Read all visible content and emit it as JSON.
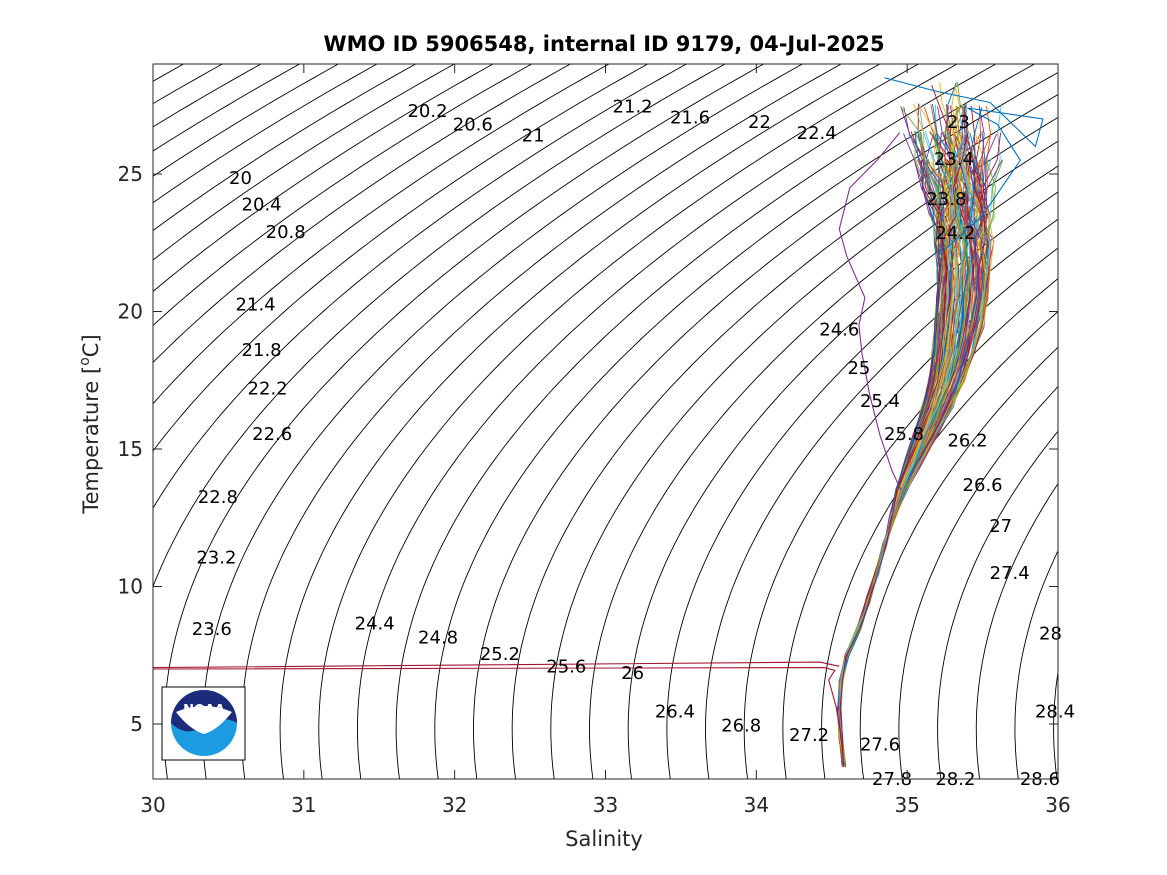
{
  "chart_data": {
    "type": "line",
    "title": "WMO ID 5906548, internal ID 9179, 04-Jul-2025",
    "xlabel": "Salinity",
    "ylabel_main": "Temperature [",
    "ylabel_sup": "o",
    "ylabel_end": "C]",
    "xlim": [
      30,
      36
    ],
    "ylim": [
      3,
      29
    ],
    "x_ticks": [
      30,
      31,
      32,
      33,
      34,
      35,
      36
    ],
    "x_tick_labels": [
      "30",
      "31",
      "32",
      "33",
      "34",
      "35",
      "36"
    ],
    "y_ticks": [
      5,
      10,
      15,
      20,
      25
    ],
    "y_tick_labels": [
      "5",
      "10",
      "15",
      "20",
      "25"
    ],
    "grid": false,
    "isopycnals": {
      "levels_from": 19.6,
      "levels_to": 29.0,
      "step": 0.2,
      "color": "#000000",
      "labels": [
        {
          "text": "20",
          "s": 30.58,
          "t": 24.85
        },
        {
          "text": "20.2",
          "s": 31.82,
          "t": 27.3
        },
        {
          "text": "20.4",
          "s": 30.72,
          "t": 23.9
        },
        {
          "text": "20.6",
          "s": 32.12,
          "t": 26.8
        },
        {
          "text": "20.8",
          "s": 30.88,
          "t": 22.9
        },
        {
          "text": "21",
          "s": 32.52,
          "t": 26.4
        },
        {
          "text": "21.2",
          "s": 33.18,
          "t": 27.45
        },
        {
          "text": "21.4",
          "s": 30.68,
          "t": 20.25
        },
        {
          "text": "21.6",
          "s": 33.56,
          "t": 27.05
        },
        {
          "text": "21.8",
          "s": 30.72,
          "t": 18.6
        },
        {
          "text": "22",
          "s": 34.02,
          "t": 26.9
        },
        {
          "text": "22.2",
          "s": 30.76,
          "t": 17.2
        },
        {
          "text": "22.4",
          "s": 34.4,
          "t": 26.5
        },
        {
          "text": "22.6",
          "s": 30.79,
          "t": 15.55
        },
        {
          "text": "22.8",
          "s": 30.43,
          "t": 13.25
        },
        {
          "text": "23",
          "s": 35.34,
          "t": 26.9
        },
        {
          "text": "23.2",
          "s": 30.42,
          "t": 11.05
        },
        {
          "text": "23.4",
          "s": 35.31,
          "t": 25.55
        },
        {
          "text": "23.6",
          "s": 30.39,
          "t": 8.45
        },
        {
          "text": "23.8",
          "s": 35.26,
          "t": 24.1
        },
        {
          "text": "24.2",
          "s": 35.32,
          "t": 22.85
        },
        {
          "text": "24.4",
          "s": 31.47,
          "t": 8.65
        },
        {
          "text": "24.6",
          "s": 34.55,
          "t": 19.35
        },
        {
          "text": "24.8",
          "s": 31.89,
          "t": 8.15
        },
        {
          "text": "25",
          "s": 34.68,
          "t": 17.95
        },
        {
          "text": "25.2",
          "s": 32.3,
          "t": 7.55
        },
        {
          "text": "25.4",
          "s": 34.82,
          "t": 16.75
        },
        {
          "text": "25.6",
          "s": 32.74,
          "t": 7.1
        },
        {
          "text": "25.8",
          "s": 34.98,
          "t": 15.55
        },
        {
          "text": "26",
          "s": 33.18,
          "t": 6.85
        },
        {
          "text": "26.2",
          "s": 35.4,
          "t": 15.3
        },
        {
          "text": "26.4",
          "s": 33.46,
          "t": 5.45
        },
        {
          "text": "26.6",
          "s": 35.5,
          "t": 13.7
        },
        {
          "text": "26.8",
          "s": 33.9,
          "t": 4.95
        },
        {
          "text": "27",
          "s": 35.62,
          "t": 12.2
        },
        {
          "text": "27.2",
          "s": 34.35,
          "t": 4.6
        },
        {
          "text": "27.4",
          "s": 35.68,
          "t": 10.5
        },
        {
          "text": "27.6",
          "s": 34.82,
          "t": 4.25
        },
        {
          "text": "27.8",
          "s": 34.9,
          "t": 3.0
        },
        {
          "text": "28",
          "s": 35.95,
          "t": 8.3
        },
        {
          "text": "28.2",
          "s": 35.32,
          "t": 3.0
        },
        {
          "text": "28.4",
          "s": 35.98,
          "t": 5.45
        },
        {
          "text": "28.6",
          "s": 35.88,
          "t": 3.0
        }
      ]
    },
    "profiles": {
      "count": 140,
      "colors": [
        "#0072BD",
        "#D95319",
        "#EDB120",
        "#7E2F8E",
        "#77AC30",
        "#4DBEEE",
        "#A2142F"
      ],
      "spine": [
        [
          34.58,
          3.5
        ],
        [
          34.56,
          4.5
        ],
        [
          34.55,
          5.5
        ],
        [
          34.56,
          6.5
        ],
        [
          34.6,
          7.5
        ],
        [
          34.68,
          8.5
        ],
        [
          34.74,
          9.5
        ],
        [
          34.8,
          10.5
        ],
        [
          34.85,
          11.5
        ],
        [
          34.9,
          12.5
        ],
        [
          34.96,
          13.5
        ],
        [
          35.04,
          14.5
        ],
        [
          35.12,
          15.5
        ],
        [
          35.2,
          16.5
        ],
        [
          35.26,
          17.5
        ],
        [
          35.31,
          18.5
        ],
        [
          35.34,
          19.5
        ],
        [
          35.36,
          20.5
        ],
        [
          35.37,
          21.5
        ],
        [
          35.37,
          22.5
        ],
        [
          35.36,
          23.5
        ],
        [
          35.34,
          24.5
        ],
        [
          35.32,
          25.5
        ],
        [
          35.3,
          26.5
        ],
        [
          35.28,
          27.5
        ],
        [
          35.25,
          28.3
        ]
      ],
      "outlier_trace": {
        "color": "#A2142F",
        "points": [
          [
            34.58,
            3.5
          ],
          [
            34.56,
            4.6
          ],
          [
            34.53,
            5.6
          ],
          [
            34.5,
            6.2
          ],
          [
            34.48,
            6.6
          ],
          [
            34.52,
            6.95
          ],
          [
            34.45,
            7.05
          ],
          [
            30.0,
            7.0
          ]
        ]
      },
      "outlier_trace_2": {
        "color": "#A2142F",
        "points": [
          [
            34.55,
            7.1
          ],
          [
            34.42,
            7.25
          ],
          [
            30.0,
            7.05
          ]
        ]
      },
      "high_salinity_outlier": {
        "color": "#0072BD",
        "points": [
          [
            35.2,
            22.0
          ],
          [
            35.5,
            23.5
          ],
          [
            35.75,
            25.5
          ],
          [
            35.6,
            26.8
          ],
          [
            35.4,
            27.4
          ],
          [
            35.9,
            27.0
          ],
          [
            35.85,
            26.0
          ],
          [
            35.55,
            27.6
          ],
          [
            35.2,
            28.0
          ],
          [
            34.85,
            28.5
          ]
        ]
      },
      "fresh_deviation": {
        "color": "#7E2F8E",
        "points": [
          [
            34.96,
            13.5
          ],
          [
            34.9,
            14.2
          ],
          [
            34.82,
            15.5
          ],
          [
            34.75,
            17.0
          ],
          [
            34.7,
            18.5
          ],
          [
            34.68,
            19.5
          ],
          [
            34.72,
            20.5
          ],
          [
            34.6,
            22.0
          ],
          [
            34.55,
            23.0
          ],
          [
            34.62,
            24.5
          ],
          [
            34.8,
            25.5
          ],
          [
            34.95,
            26.5
          ]
        ]
      }
    }
  },
  "logo": {
    "text": "NOAA",
    "top_color": "#1d2c7a",
    "bottom_color": "#1d9be0"
  }
}
